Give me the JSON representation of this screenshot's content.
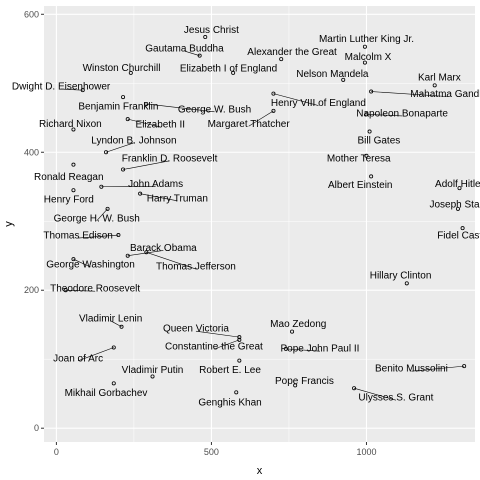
{
  "chart_data": {
    "type": "scatter",
    "title": "",
    "xlabel": "x",
    "ylabel": "y",
    "xlim": [
      -40,
      1350
    ],
    "ylim": [
      -20,
      612
    ],
    "x_ticks": [
      0,
      500,
      1000
    ],
    "y_ticks": [
      0,
      200,
      400,
      600
    ],
    "grid": true,
    "panel_background": "#ebebeb",
    "grid_color": "#ffffff",
    "point_color": "#000000",
    "points": [
      {
        "label": "Jesus Christ",
        "x": 480,
        "y": 567,
        "lx": 500,
        "ly": 578
      },
      {
        "label": "Martin Luther King Jr.",
        "x": 995,
        "y": 553,
        "lx": 1000,
        "ly": 565
      },
      {
        "label": "Gautama Buddha",
        "x": 462,
        "y": 540,
        "lx": 413,
        "ly": 551
      },
      {
        "label": "Alexander the Great",
        "x": 725,
        "y": 535,
        "lx": 760,
        "ly": 546
      },
      {
        "label": "Malcolm X",
        "x": 995,
        "y": 530,
        "lx": 1005,
        "ly": 539
      },
      {
        "label": "Winston Churchill",
        "x": 240,
        "y": 515,
        "lx": 210,
        "ly": 523
      },
      {
        "label": "Elizabeth I of England",
        "x": 570,
        "y": 515,
        "lx": 555,
        "ly": 522
      },
      {
        "label": "Nelson Mandela",
        "x": 925,
        "y": 505,
        "lx": 890,
        "ly": 514
      },
      {
        "label": "Karl Marx",
        "x": 1220,
        "y": 497,
        "lx": 1235,
        "ly": 509
      },
      {
        "label": "Dwight D. Eisenhower",
        "x": 85,
        "y": 490,
        "lx": 15,
        "ly": 496
      },
      {
        "label": "Mahatma Gandhi",
        "x": 1015,
        "y": 488,
        "lx": 1265,
        "ly": 485
      },
      {
        "label": "Henry VIII of England",
        "x": 700,
        "y": 485,
        "lx": 845,
        "ly": 472
      },
      {
        "label": "Benjamin Franklin",
        "x": 215,
        "y": 480,
        "lx": 200,
        "ly": 467
      },
      {
        "label": "George W. Bush",
        "x": 290,
        "y": 470,
        "lx": 510,
        "ly": 463
      },
      {
        "label": "Napoleon Bonaparte",
        "x": 1000,
        "y": 455,
        "lx": 1115,
        "ly": 457
      },
      {
        "label": "Richard Nixon",
        "x": 55,
        "y": 433,
        "lx": 45,
        "ly": 442
      },
      {
        "label": "Elizabeth II",
        "x": 230,
        "y": 448,
        "lx": 335,
        "ly": 441
      },
      {
        "label": "Margaret Thatcher",
        "x": 700,
        "y": 460,
        "lx": 620,
        "ly": 442
      },
      {
        "label": "Bill Gates",
        "x": 1010,
        "y": 430,
        "lx": 1040,
        "ly": 418
      },
      {
        "label": "Lyndon B. Johnson",
        "x": 160,
        "y": 400,
        "lx": 250,
        "ly": 418
      },
      {
        "label": "Franklin D. Roosevelt",
        "x": 215,
        "y": 375,
        "lx": 365,
        "ly": 392
      },
      {
        "label": "Mother Teresa",
        "x": 1000,
        "y": 395,
        "lx": 975,
        "ly": 392
      },
      {
        "label": "Ronald Reagan",
        "x": 55,
        "y": 382,
        "lx": 40,
        "ly": 365
      },
      {
        "label": "John Adams",
        "x": 145,
        "y": 350,
        "lx": 320,
        "ly": 355
      },
      {
        "label": "Albert Einstein",
        "x": 1015,
        "y": 365,
        "lx": 980,
        "ly": 353
      },
      {
        "label": "Adolf Hitler",
        "x": 1300,
        "y": 348,
        "lx": 1300,
        "ly": 355
      },
      {
        "label": "Henry Ford",
        "x": 55,
        "y": 345,
        "lx": 40,
        "ly": 332
      },
      {
        "label": "Harry Truman",
        "x": 270,
        "y": 340,
        "lx": 390,
        "ly": 334
      },
      {
        "label": "Joseph Stalin",
        "x": 1295,
        "y": 318,
        "lx": 1300,
        "ly": 325
      },
      {
        "label": "George H. W. Bush",
        "x": 165,
        "y": 318,
        "lx": 130,
        "ly": 305
      },
      {
        "label": "Thomas Edison",
        "x": 200,
        "y": 280,
        "lx": 70,
        "ly": 280
      },
      {
        "label": "Fidel Castro",
        "x": 1310,
        "y": 290,
        "lx": 1315,
        "ly": 280
      },
      {
        "label": "Barack Obama",
        "x": 230,
        "y": 250,
        "lx": 345,
        "ly": 262
      },
      {
        "label": "George Washington",
        "x": 55,
        "y": 245,
        "lx": 110,
        "ly": 238
      },
      {
        "label": "Thomas Jefferson",
        "x": 290,
        "y": 255,
        "lx": 450,
        "ly": 235
      },
      {
        "label": "Hillary Clinton",
        "x": 1130,
        "y": 210,
        "lx": 1110,
        "ly": 222
      },
      {
        "label": "Theodore Roosevelt",
        "x": 30,
        "y": 200,
        "lx": 125,
        "ly": 203
      },
      {
        "label": "Vladimir Lenin",
        "x": 210,
        "y": 147,
        "lx": 175,
        "ly": 160
      },
      {
        "label": "Mao Zedong",
        "x": 760,
        "y": 140,
        "lx": 780,
        "ly": 152
      },
      {
        "label": "Queen Victoria",
        "x": 590,
        "y": 132,
        "lx": 450,
        "ly": 145
      },
      {
        "label": "Constantine the Great",
        "x": 590,
        "y": 128,
        "lx": 508,
        "ly": 119
      },
      {
        "label": "Pope John Paul II",
        "x": 740,
        "y": 115,
        "lx": 850,
        "ly": 116
      },
      {
        "label": "Joan of Arc",
        "x": 185,
        "y": 117,
        "lx": 70,
        "ly": 102
      },
      {
        "label": "Vladimir Putin",
        "x": 310,
        "y": 75,
        "lx": 310,
        "ly": 85
      },
      {
        "label": "Robert E. Lee",
        "x": 590,
        "y": 98,
        "lx": 560,
        "ly": 85
      },
      {
        "label": "Benito Mussolini",
        "x": 1315,
        "y": 90,
        "lx": 1145,
        "ly": 87
      },
      {
        "label": "Pope Francis",
        "x": 770,
        "y": 62,
        "lx": 800,
        "ly": 69
      },
      {
        "label": "Mikhail Gorbachev",
        "x": 185,
        "y": 65,
        "lx": 160,
        "ly": 52
      },
      {
        "label": "Ulysses S. Grant",
        "x": 960,
        "y": 58,
        "lx": 1095,
        "ly": 45
      },
      {
        "label": "Genghis Khan",
        "x": 580,
        "y": 52,
        "lx": 560,
        "ly": 38
      }
    ]
  }
}
